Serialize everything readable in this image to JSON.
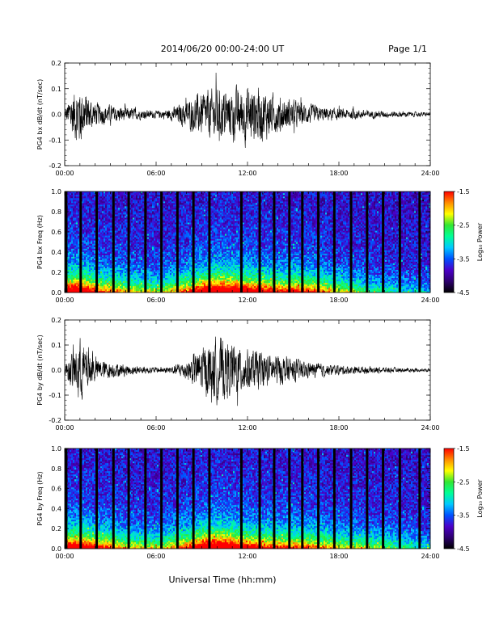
{
  "header": {
    "title": "2014/06/20  00:00-24:00 UT",
    "page": "Page 1/1"
  },
  "x_axis": {
    "title": "Universal Time (hh:mm)",
    "tick_labels": [
      "00:00",
      "06:00",
      "12:00",
      "18:00",
      "24:00"
    ]
  },
  "colorbar": {
    "label": "Log₁₀ Power",
    "tick_labels": [
      "-1.5",
      "-2.5",
      "-3.5",
      "-4.5"
    ],
    "colors": [
      "#ff0000",
      "#ff8c00",
      "#ffff00",
      "#32e632",
      "#00ff96",
      "#00c8ff",
      "#0050ff",
      "#4b00c8",
      "#2d006e",
      "#000000"
    ]
  },
  "chart_data": [
    {
      "type": "line",
      "ylabel": "PG4 bx dB/dt (nT/sec)",
      "xlim": [
        0,
        24
      ],
      "ylim": [
        -0.2,
        0.2
      ],
      "ytick_labels": [
        "0.2",
        "0.1",
        "0.0",
        "-0.1",
        "-0.2"
      ],
      "xtick_labels": [
        "00:00",
        "06:00",
        "12:00",
        "18:00",
        "24:00"
      ],
      "envelope": {
        "hours": [
          0,
          0.5,
          1,
          1.5,
          2,
          3,
          4,
          5,
          6,
          7,
          8,
          9,
          10,
          11,
          12,
          13,
          14,
          15,
          16,
          17,
          18,
          19,
          20,
          21,
          22,
          23,
          24
        ],
        "amplitude": [
          0.02,
          0.12,
          0.15,
          0.1,
          0.06,
          0.045,
          0.035,
          0.025,
          0.018,
          0.03,
          0.07,
          0.11,
          0.13,
          0.12,
          0.15,
          0.13,
          0.09,
          0.07,
          0.05,
          0.035,
          0.028,
          0.025,
          0.02,
          0.017,
          0.015,
          0.012,
          0.01
        ]
      }
    },
    {
      "type": "heatmap",
      "ylabel": "PG4 bx Freq (Hz)",
      "xlim": [
        0,
        24
      ],
      "ylim": [
        0,
        1.0
      ],
      "ytick_labels": [
        "1.0",
        "0.8",
        "0.6",
        "0.4",
        "0.2",
        "0.0"
      ],
      "xtick_labels": [
        "00:00",
        "06:00",
        "12:00",
        "18:00",
        "24:00"
      ],
      "zlabel": "Log₁₀ Power",
      "zlim": [
        -4.5,
        -1.5
      ],
      "gap_hours": [
        0.1,
        1.05,
        2.1,
        3.2,
        4.2,
        5.3,
        6.35,
        7.4,
        8.45,
        9.5,
        11.6,
        12.8,
        13.75,
        14.75,
        15.6,
        16.65,
        17.7,
        18.8,
        19.85,
        20.9,
        22.0,
        23.3
      ],
      "activity_hours": [
        0,
        1,
        2,
        4,
        6,
        8,
        9,
        10,
        11,
        12,
        13,
        14,
        15,
        16,
        17,
        18,
        20,
        22,
        24
      ],
      "activity_level": [
        0.9,
        0.95,
        0.7,
        0.55,
        0.45,
        0.65,
        0.9,
        1.0,
        0.95,
        0.85,
        0.8,
        0.7,
        0.75,
        0.7,
        0.6,
        0.5,
        0.35,
        0.25,
        0.2
      ]
    },
    {
      "type": "line",
      "ylabel": "PG4 by dB/dt (nT/sec)",
      "xlim": [
        0,
        24
      ],
      "ylim": [
        -0.2,
        0.2
      ],
      "ytick_labels": [
        "0.2",
        "0.1",
        "0.0",
        "-0.1",
        "-0.2"
      ],
      "xtick_labels": [
        "00:00",
        "06:00",
        "12:00",
        "18:00",
        "24:00"
      ],
      "envelope": {
        "hours": [
          0,
          0.5,
          1,
          1.5,
          2,
          3,
          4,
          5,
          6,
          7,
          8,
          9,
          10,
          11,
          12,
          13,
          14,
          15,
          16,
          17,
          18,
          19,
          20,
          21,
          22,
          23,
          24
        ],
        "amplitude": [
          0.03,
          0.1,
          0.16,
          0.11,
          0.06,
          0.04,
          0.03,
          0.02,
          0.015,
          0.02,
          0.05,
          0.12,
          0.16,
          0.14,
          0.11,
          0.09,
          0.08,
          0.06,
          0.04,
          0.03,
          0.025,
          0.02,
          0.018,
          0.015,
          0.012,
          0.01,
          0.008
        ]
      }
    },
    {
      "type": "heatmap",
      "ylabel": "PG4 by Freq (Hz)",
      "xlim": [
        0,
        24
      ],
      "ylim": [
        0,
        1.0
      ],
      "ytick_labels": [
        "1.0",
        "0.8",
        "0.6",
        "0.4",
        "0.2",
        "0.0"
      ],
      "xtick_labels": [
        "00:00",
        "06:00",
        "12:00",
        "18:00",
        "24:00"
      ],
      "zlabel": "Log₁₀ Power",
      "zlim": [
        -4.5,
        -1.5
      ],
      "gap_hours": [
        0.1,
        1.05,
        2.1,
        3.2,
        4.2,
        5.3,
        6.35,
        7.4,
        8.45,
        9.5,
        11.6,
        12.8,
        13.75,
        14.75,
        15.6,
        16.65,
        17.7,
        18.8,
        19.85,
        20.9,
        22.0,
        23.3
      ],
      "activity_hours": [
        0,
        1,
        2,
        4,
        6,
        8,
        9,
        10,
        11,
        12,
        13,
        14,
        15,
        16,
        17,
        18,
        20,
        22,
        24
      ],
      "activity_level": [
        0.85,
        0.9,
        0.75,
        0.55,
        0.45,
        0.7,
        0.95,
        1.0,
        0.9,
        0.8,
        0.75,
        0.7,
        0.7,
        0.65,
        0.6,
        0.5,
        0.45,
        0.35,
        0.25
      ]
    }
  ]
}
